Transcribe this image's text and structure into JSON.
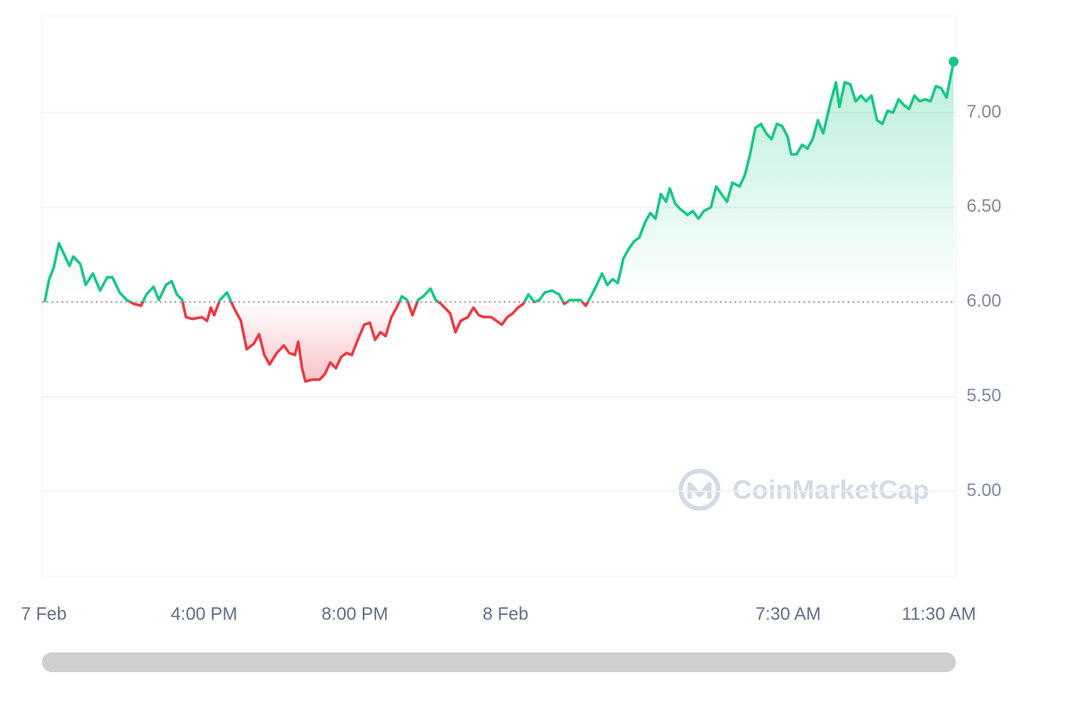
{
  "chart_data": {
    "type": "line",
    "watermark": "CoinMarketCap",
    "baseline": 6,
    "color": "#16c784",
    "negative_color": "#ea3943",
    "xlim": [
      11.7,
      35.95
    ],
    "ylim": [
      4.55,
      7.51
    ],
    "xticks": [
      {
        "value": 11.75,
        "label": "7 Feb"
      },
      {
        "value": 16,
        "label": "4:00 PM"
      },
      {
        "value": 20,
        "label": "8:00 PM"
      },
      {
        "value": 24,
        "label": "8 Feb"
      },
      {
        "value": 31.5,
        "label": "7:30 AM"
      },
      {
        "value": 35.5,
        "label": "11:30 AM"
      }
    ],
    "yticks": [
      {
        "value": 5,
        "label": "5.00"
      },
      {
        "value": 5.5,
        "label": "5.50"
      },
      {
        "value": 6,
        "label": "6.00"
      },
      {
        "value": 6.5,
        "label": "6.50"
      },
      {
        "value": 7,
        "label": "7.00"
      }
    ],
    "grid": true,
    "x": [
      11.77,
      11.89,
      12.01,
      12.15,
      12.29,
      12.43,
      12.53,
      12.72,
      12.86,
      13.05,
      13.24,
      13.43,
      13.57,
      13.76,
      13.95,
      14.14,
      14.33,
      14.47,
      14.66,
      14.8,
      14.99,
      15.14,
      15.28,
      15.42,
      15.52,
      15.7,
      15.94,
      16.08,
      16.18,
      16.27,
      16.42,
      16.61,
      16.79,
      16.98,
      17.13,
      17.32,
      17.46,
      17.6,
      17.74,
      17.93,
      18.12,
      18.26,
      18.41,
      18.5,
      18.6,
      18.69,
      18.88,
      19.07,
      19.21,
      19.35,
      19.5,
      19.64,
      19.78,
      19.92,
      20.06,
      20.25,
      20.4,
      20.54,
      20.68,
      20.82,
      20.97,
      21.11,
      21.25,
      21.39,
      21.53,
      21.68,
      21.82,
      22.01,
      22.15,
      22.29,
      22.43,
      22.53,
      22.67,
      22.81,
      23.0,
      23.15,
      23.29,
      23.43,
      23.62,
      23.76,
      23.9,
      24.05,
      24.19,
      24.33,
      24.47,
      24.61,
      24.76,
      24.9,
      25.04,
      25.23,
      25.42,
      25.56,
      25.7,
      25.85,
      25.99,
      26.13,
      26.27,
      26.42,
      26.56,
      26.7,
      26.84,
      26.98,
      27.13,
      27.27,
      27.41,
      27.55,
      27.7,
      27.84,
      27.98,
      28.12,
      28.26,
      28.36,
      28.5,
      28.64,
      28.83,
      28.97,
      29.12,
      29.26,
      29.45,
      29.59,
      29.73,
      29.88,
      30.02,
      30.21,
      30.35,
      30.49,
      30.63,
      30.78,
      30.92,
      31.06,
      31.2,
      31.34,
      31.49,
      31.58,
      31.72,
      31.87,
      32.01,
      32.15,
      32.29,
      32.43,
      32.62,
      32.77,
      32.86,
      33.0,
      33.15,
      33.29,
      33.43,
      33.57,
      33.71,
      33.86,
      34.0,
      34.14,
      34.28,
      34.43,
      34.57,
      34.71,
      34.85,
      34.99,
      35.14,
      35.28,
      35.42,
      35.56,
      35.7,
      35.89
    ],
    "values": [
      6.0,
      6.12,
      6.18,
      6.31,
      6.25,
      6.19,
      6.24,
      6.2,
      6.09,
      6.15,
      6.06,
      6.13,
      6.13,
      6.05,
      6.01,
      5.99,
      5.98,
      6.04,
      6.08,
      6.01,
      6.09,
      6.11,
      6.04,
      6.01,
      5.92,
      5.91,
      5.92,
      5.9,
      5.97,
      5.93,
      6.01,
      6.05,
      5.97,
      5.9,
      5.75,
      5.78,
      5.83,
      5.72,
      5.67,
      5.73,
      5.77,
      5.73,
      5.72,
      5.79,
      5.65,
      5.58,
      5.59,
      5.59,
      5.62,
      5.68,
      5.65,
      5.71,
      5.73,
      5.72,
      5.79,
      5.88,
      5.89,
      5.8,
      5.84,
      5.82,
      5.92,
      5.97,
      6.03,
      6.01,
      5.93,
      6.01,
      6.03,
      6.07,
      6.01,
      5.99,
      5.96,
      5.94,
      5.84,
      5.9,
      5.92,
      5.97,
      5.93,
      5.92,
      5.92,
      5.9,
      5.88,
      5.92,
      5.94,
      5.97,
      5.99,
      6.04,
      6.0,
      6.01,
      6.05,
      6.06,
      6.04,
      5.99,
      6.01,
      6.01,
      6.01,
      5.98,
      6.03,
      6.09,
      6.15,
      6.09,
      6.12,
      6.1,
      6.23,
      6.28,
      6.32,
      6.34,
      6.42,
      6.47,
      6.44,
      6.57,
      6.53,
      6.6,
      6.52,
      6.49,
      6.46,
      6.48,
      6.44,
      6.48,
      6.5,
      6.61,
      6.57,
      6.53,
      6.63,
      6.61,
      6.67,
      6.78,
      6.92,
      6.94,
      6.89,
      6.86,
      6.94,
      6.93,
      6.87,
      6.78,
      6.78,
      6.83,
      6.81,
      6.86,
      6.96,
      6.89,
      7.05,
      7.16,
      7.03,
      7.16,
      7.15,
      7.06,
      7.09,
      7.06,
      7.09,
      6.96,
      6.94,
      7.01,
      7.0,
      7.07,
      7.04,
      7.02,
      7.09,
      7.06,
      7.07,
      7.06,
      7.14,
      7.13,
      7.08,
      7.27
    ]
  }
}
